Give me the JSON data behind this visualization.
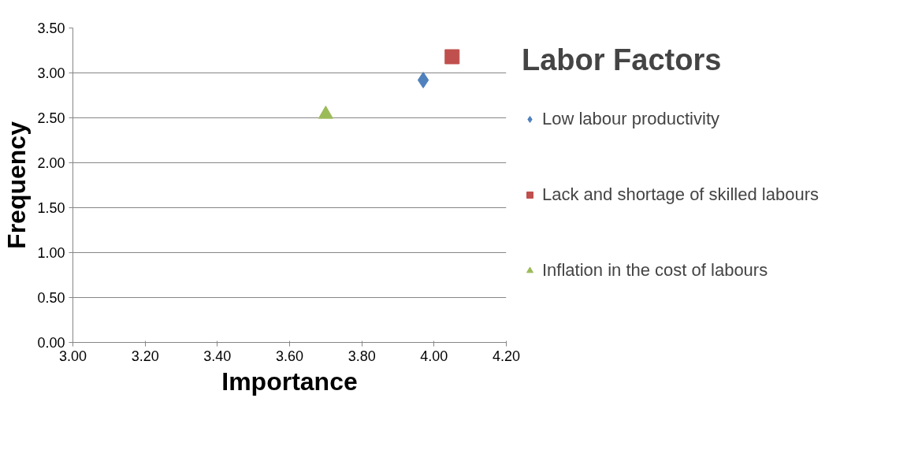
{
  "chart_data": {
    "type": "scatter",
    "title": "Labor Factors",
    "xlabel": "Importance",
    "ylabel": "Frequency",
    "xlim": [
      3.0,
      4.2
    ],
    "xticks": [
      {
        "value": 3.0,
        "label": "3.00"
      },
      {
        "value": 3.2,
        "label": "3.20"
      },
      {
        "value": 3.4,
        "label": "3.40"
      },
      {
        "value": 3.6,
        "label": "3.60"
      },
      {
        "value": 3.8,
        "label": "3.80"
      },
      {
        "value": 4.0,
        "label": "4.00"
      },
      {
        "value": 4.2,
        "label": "4.20"
      }
    ],
    "ylim": [
      0,
      3.5
    ],
    "yticks": [
      {
        "value": 0,
        "label": "0.00"
      },
      {
        "value": 0.5,
        "label": "0.50"
      },
      {
        "value": 1.0,
        "label": "1.00"
      },
      {
        "value": 1.5,
        "label": "1.50"
      },
      {
        "value": 2.0,
        "label": "2.00"
      },
      {
        "value": 2.5,
        "label": "2.50"
      },
      {
        "value": 3.0,
        "label": "3.00"
      },
      {
        "value": 3.5,
        "label": "3.50"
      }
    ],
    "grid": "y",
    "legend": "right",
    "series": [
      {
        "name": "Low labour productivity",
        "color": "#4f81bd",
        "marker": "diamond",
        "x": [
          3.97
        ],
        "values": [
          2.92
        ]
      },
      {
        "name": "Lack and shortage of skilled labours",
        "color": "#c0504d",
        "marker": "square",
        "x": [
          4.05
        ],
        "values": [
          3.18
        ]
      },
      {
        "name": "Inflation in the cost of labours",
        "color": "#9bbb59",
        "marker": "triangle",
        "x": [
          3.7
        ],
        "values": [
          2.54
        ]
      }
    ]
  }
}
